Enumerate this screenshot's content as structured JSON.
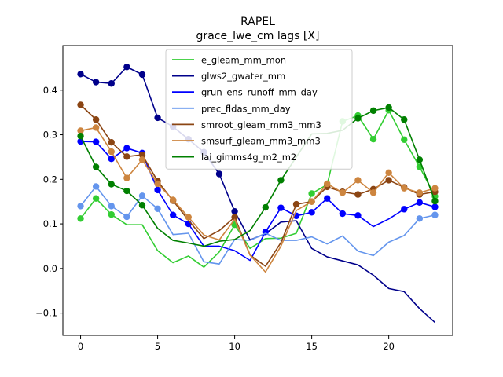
{
  "chart_data": {
    "type": "line",
    "title": "RAPEL",
    "subtitle": "grace_lwe_cm lags [X]",
    "xlabel": "",
    "ylabel": "",
    "xlim": [
      -1.15,
      24.15
    ],
    "ylim": [
      -0.15,
      0.5
    ],
    "xticks": [
      0,
      5,
      10,
      15,
      20
    ],
    "yticks": [
      -0.1,
      0.0,
      0.1,
      0.2,
      0.3,
      0.4
    ],
    "ytick_labels": [
      "−0.1",
      "0.0",
      "0.1",
      "0.2",
      "0.3",
      "0.4"
    ],
    "legend_position": "top-center",
    "x": [
      0,
      1,
      2,
      3,
      4,
      5,
      6,
      7,
      8,
      9,
      10,
      11,
      12,
      13,
      14,
      15,
      16,
      17,
      18,
      19,
      20,
      21,
      22,
      23
    ],
    "series": [
      {
        "name": "e_gleam_mm_mon",
        "color": "#32cd32",
        "values": [
          0.112,
          0.157,
          0.121,
          0.098,
          0.098,
          0.04,
          0.013,
          0.028,
          0.003,
          0.037,
          0.098,
          0.045,
          0.067,
          0.068,
          0.079,
          0.168,
          0.188,
          0.33,
          0.343,
          0.29,
          0.355,
          0.289,
          0.228,
          0.162
        ],
        "markers": [
          0,
          1,
          2,
          10,
          15,
          16,
          17,
          18,
          19,
          20,
          21,
          22,
          23
        ]
      },
      {
        "name": "glws2_gwater_mm",
        "color": "#00008b",
        "values": [
          0.436,
          0.418,
          0.415,
          0.452,
          0.435,
          0.338,
          0.318,
          0.29,
          0.261,
          0.212,
          0.128,
          0.064,
          0.078,
          0.104,
          0.107,
          0.045,
          0.026,
          0.017,
          0.008,
          -0.015,
          -0.045,
          -0.052,
          -0.09,
          -0.121
        ],
        "markers": [
          0,
          1,
          2,
          3,
          4,
          5,
          6,
          7,
          8,
          9,
          10
        ]
      },
      {
        "name": "grun_ens_runoff_mm_day",
        "color": "#0000ff",
        "values": [
          0.285,
          0.284,
          0.246,
          0.27,
          0.259,
          0.176,
          0.12,
          0.1,
          0.05,
          0.05,
          0.04,
          0.018,
          0.082,
          0.136,
          0.118,
          0.126,
          0.157,
          0.123,
          0.119,
          0.094,
          0.111,
          0.133,
          0.148,
          0.138
        ],
        "markers": [
          0,
          1,
          2,
          3,
          4,
          5,
          6,
          7,
          12,
          13,
          14,
          15,
          16,
          17,
          18,
          21,
          22,
          23
        ]
      },
      {
        "name": "prec_fldas_mm_day",
        "color": "#6495ed",
        "values": [
          0.14,
          0.184,
          0.14,
          0.116,
          0.163,
          0.134,
          0.076,
          0.079,
          0.015,
          0.01,
          0.065,
          0.063,
          0.079,
          0.063,
          0.063,
          0.071,
          0.055,
          0.073,
          0.039,
          0.029,
          0.059,
          0.074,
          0.112,
          0.12
        ],
        "markers": [
          0,
          1,
          2,
          3,
          4,
          5,
          22,
          23
        ]
      },
      {
        "name": "smroot_gleam_mm3_mm3",
        "color": "#8b4513",
        "values": [
          0.367,
          0.334,
          0.283,
          0.251,
          0.255,
          0.196,
          0.152,
          0.108,
          0.067,
          0.085,
          0.115,
          0.03,
          0.005,
          0.058,
          0.144,
          0.15,
          0.183,
          0.172,
          0.166,
          0.178,
          0.198,
          0.182,
          0.166,
          0.172
        ],
        "markers": [
          0,
          1,
          2,
          3,
          4,
          5,
          6,
          10,
          14,
          15,
          16,
          17,
          18,
          19,
          20,
          21,
          22,
          23
        ]
      },
      {
        "name": "smsurf_gleam_mm3_mm3",
        "color": "#cd853f",
        "values": [
          0.309,
          0.316,
          0.262,
          0.203,
          0.244,
          0.19,
          0.154,
          0.115,
          0.075,
          0.064,
          0.11,
          0.03,
          -0.008,
          0.05,
          0.13,
          0.15,
          0.19,
          0.17,
          0.198,
          0.17,
          0.215,
          0.18,
          0.17,
          0.18
        ],
        "markers": [
          0,
          1,
          2,
          3,
          4,
          5,
          6,
          7,
          15,
          16,
          17,
          18,
          19,
          20,
          21,
          22,
          23
        ]
      },
      {
        "name": "lai_gimms4g_m2_m2",
        "color": "#008000",
        "values": [
          0.297,
          0.228,
          0.189,
          0.174,
          0.142,
          0.09,
          0.063,
          0.057,
          0.05,
          0.061,
          0.065,
          0.085,
          0.137,
          0.198,
          0.25,
          0.302,
          0.303,
          0.31,
          0.337,
          0.354,
          0.361,
          0.334,
          0.244,
          0.151
        ],
        "markers": [
          0,
          1,
          2,
          3,
          4,
          12,
          13,
          18,
          19,
          20,
          21,
          22,
          23
        ]
      }
    ]
  }
}
